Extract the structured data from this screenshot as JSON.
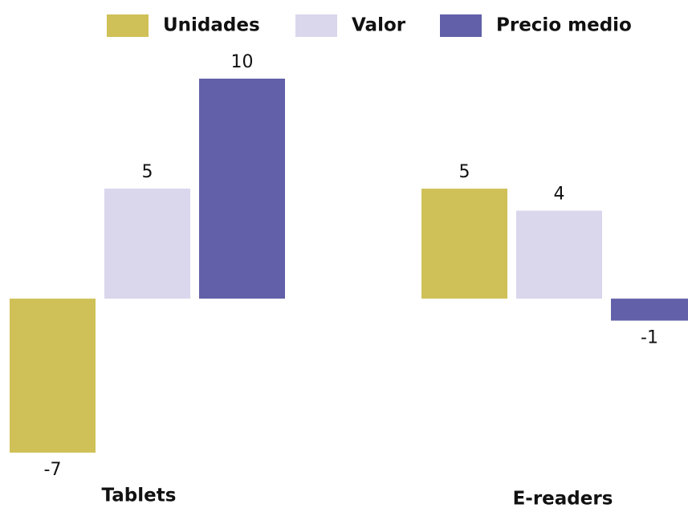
{
  "chart_data": {
    "type": "bar",
    "categories": [
      "Tablets",
      "E-readers"
    ],
    "series": [
      {
        "name": "Unidades",
        "color": "#cfc157",
        "values": [
          -7,
          5
        ]
      },
      {
        "name": "Valor",
        "color": "#dad6ec",
        "values": [
          5,
          4
        ]
      },
      {
        "name": "Precio medio",
        "color": "#6160a8",
        "values": [
          10,
          -1
        ]
      }
    ]
  }
}
